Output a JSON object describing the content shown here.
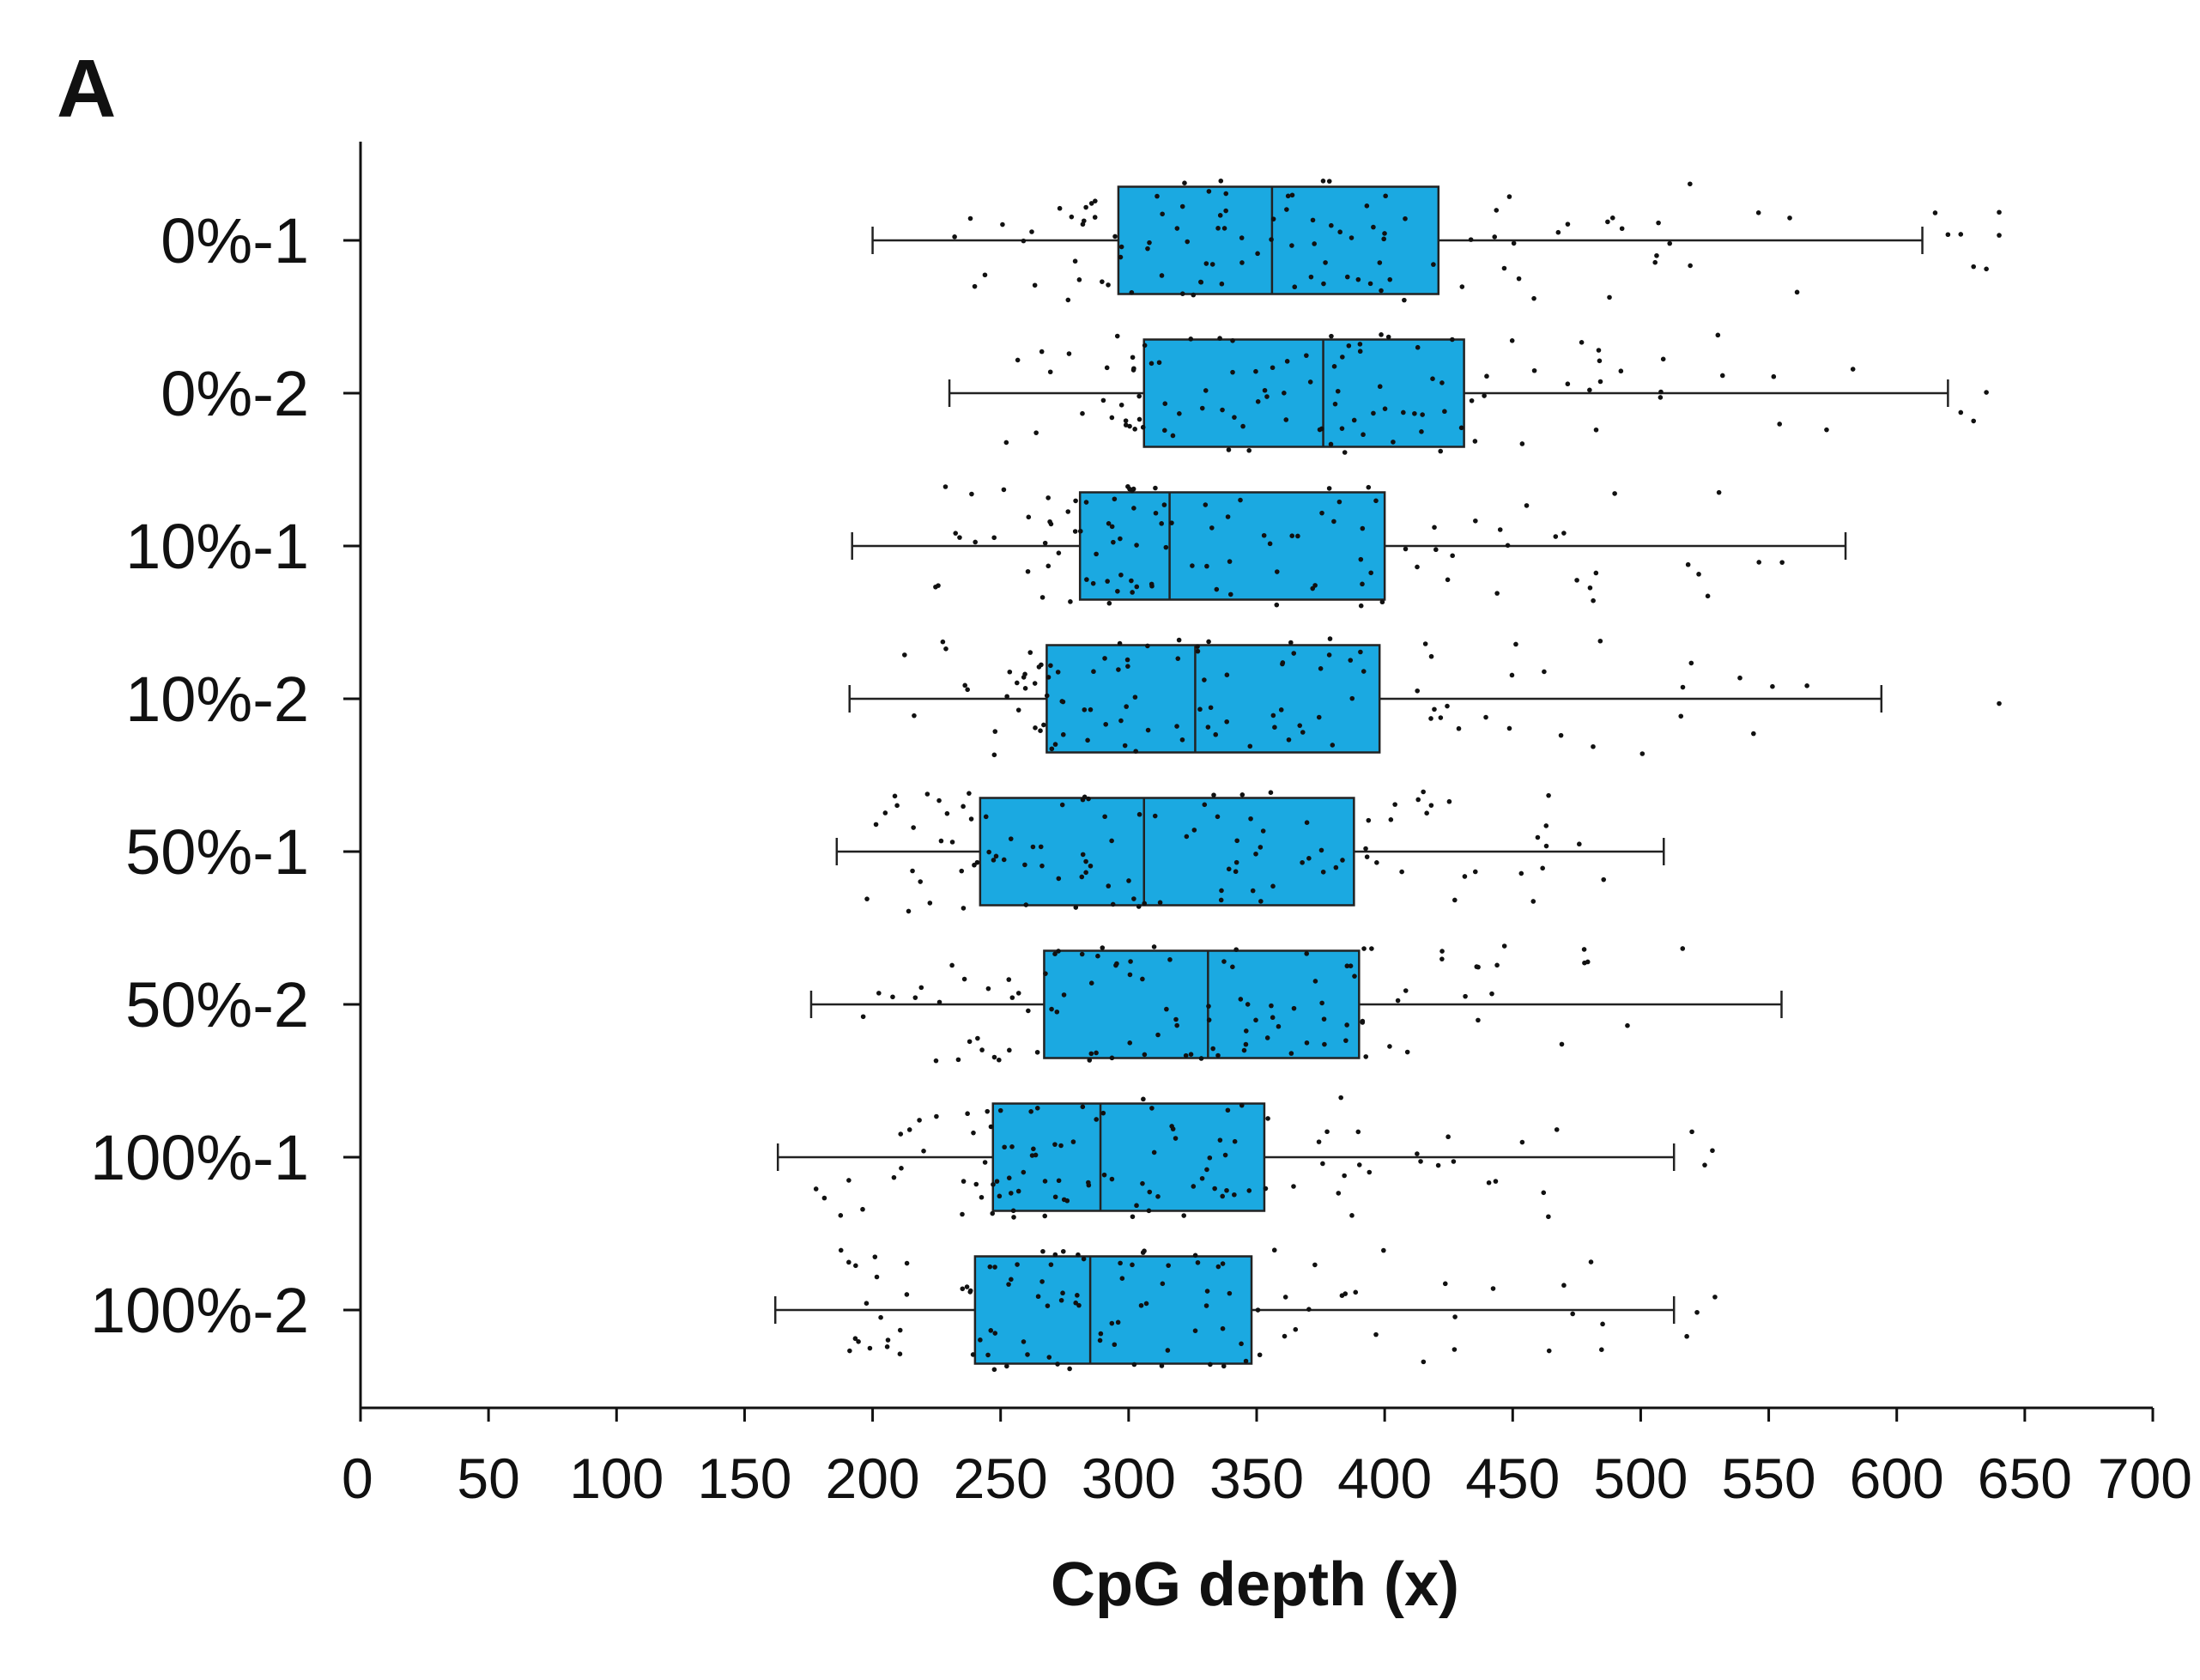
{
  "panel_label": "A",
  "colors": {
    "box_fill": "#1BA9E1",
    "stroke": "#222222",
    "points": "#111111"
  },
  "chart_data": {
    "type": "boxplot",
    "orientation": "horizontal",
    "xlabel": "CpG depth (x)",
    "xlim": [
      0,
      700
    ],
    "xticks": [
      0,
      50,
      100,
      150,
      200,
      250,
      300,
      350,
      400,
      450,
      500,
      550,
      600,
      650,
      700
    ],
    "categories": [
      "0%-1",
      "0%-2",
      "10%-1",
      "10%-2",
      "50%-1",
      "50%-2",
      "100%-1",
      "100%-2"
    ],
    "series": [
      {
        "name": "0%-1",
        "whisker_low": 200,
        "q1": 296,
        "median": 356,
        "q3": 421,
        "whisker_high": 610,
        "outliers": [
          615,
          620,
          625,
          630,
          635,
          640,
          640
        ]
      },
      {
        "name": "0%-2",
        "whisker_low": 230,
        "q1": 306,
        "median": 376,
        "q3": 431,
        "whisker_high": 620,
        "outliers": [
          625,
          630,
          635
        ]
      },
      {
        "name": "10%-1",
        "whisker_low": 192,
        "q1": 281,
        "median": 316,
        "q3": 400,
        "whisker_high": 580,
        "outliers": []
      },
      {
        "name": "10%-2",
        "whisker_low": 191,
        "q1": 268,
        "median": 326,
        "q3": 398,
        "whisker_high": 594,
        "outliers": [
          640
        ]
      },
      {
        "name": "50%-1",
        "whisker_low": 186,
        "q1": 242,
        "median": 306,
        "q3": 388,
        "whisker_high": 509,
        "outliers": []
      },
      {
        "name": "50%-2",
        "whisker_low": 176,
        "q1": 267,
        "median": 331,
        "q3": 390,
        "whisker_high": 555,
        "outliers": []
      },
      {
        "name": "100%-1",
        "whisker_low": 163,
        "q1": 247,
        "median": 289,
        "q3": 353,
        "whisker_high": 513,
        "outliers": [
          520,
          525,
          528
        ]
      },
      {
        "name": "100%-2",
        "whisker_low": 162,
        "q1": 240,
        "median": 285,
        "q3": 348,
        "whisker_high": 513,
        "outliers": [
          518,
          522,
          529
        ]
      }
    ]
  }
}
